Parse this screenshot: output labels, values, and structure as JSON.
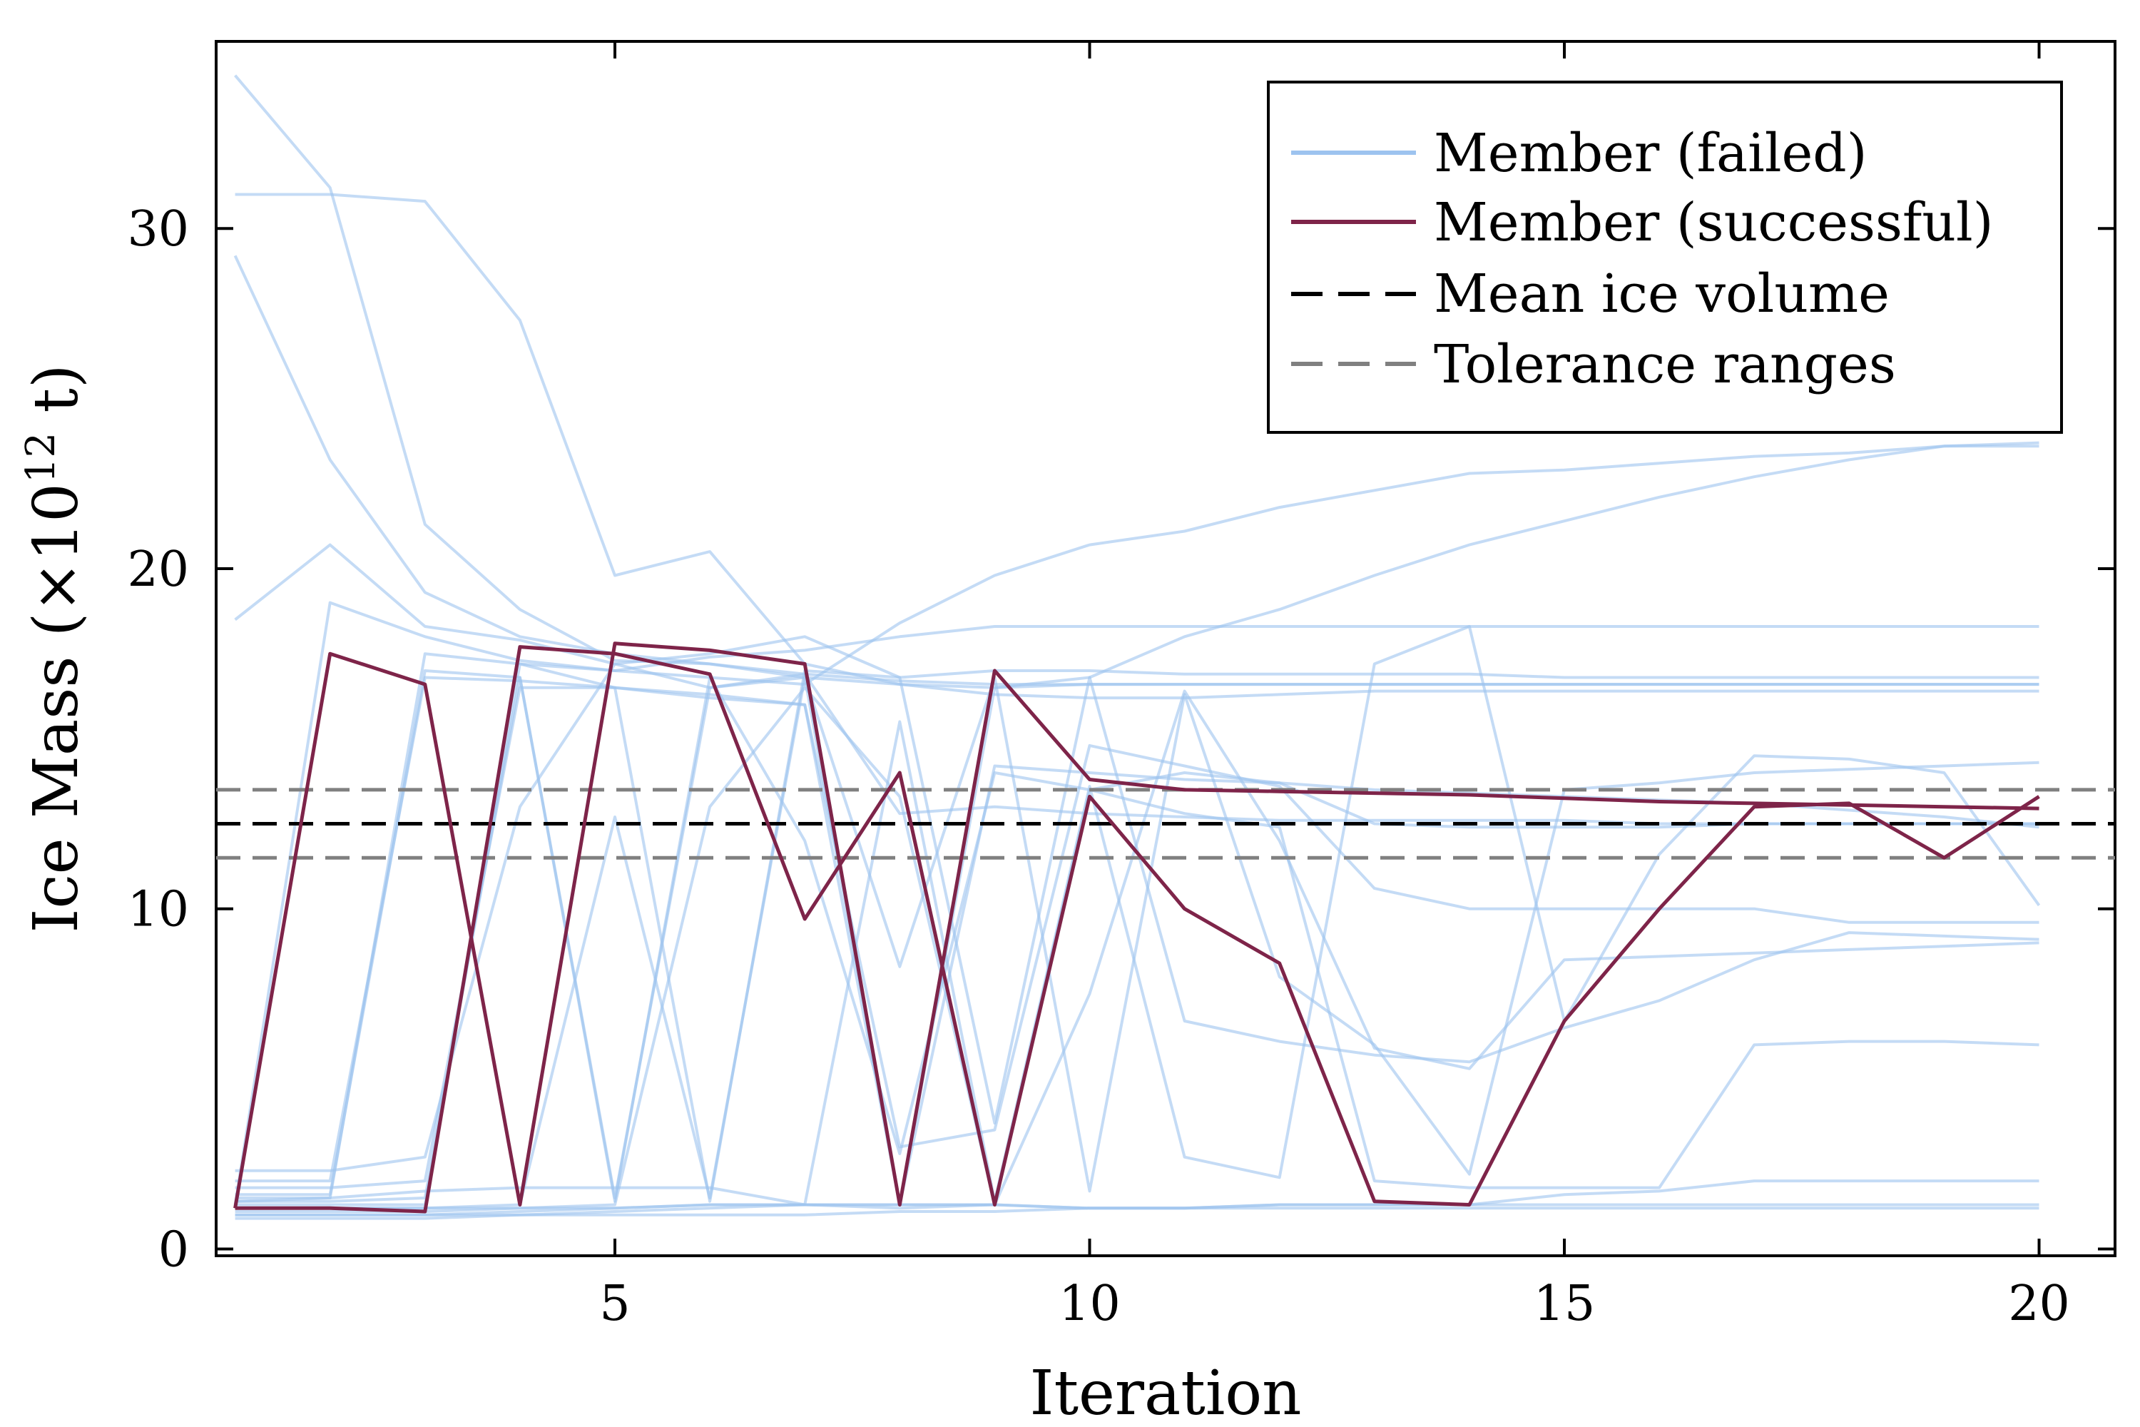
{
  "chart_data": {
    "type": "line",
    "xlabel": "Iteration",
    "ylabel": "Ice Mass (×10",
    "ylabel_exponent": "12",
    "ylabel_unit": " t)",
    "xlim": [
      0.8,
      20.8
    ],
    "ylim": [
      -0.2,
      35.5
    ],
    "x_ticks": [
      5,
      10,
      15,
      20
    ],
    "y_ticks": [
      0,
      10,
      20,
      30
    ],
    "grid": false,
    "legend_position": "top-right",
    "legend": [
      {
        "label": "Member (failed)",
        "style": "failed"
      },
      {
        "label": "Member (successful)",
        "style": "successful"
      },
      {
        "label": "Mean ice volume",
        "style": "mean"
      },
      {
        "label": "Tolerance ranges",
        "style": "tolerance"
      }
    ],
    "colors": {
      "failed": "#9dc3ef",
      "successful": "#7e2449",
      "mean": "#000000",
      "tolerance": "#808080"
    },
    "x": [
      1,
      2,
      3,
      4,
      5,
      6,
      7,
      8,
      9,
      10,
      11,
      12,
      13,
      14,
      15,
      16,
      17,
      18,
      19,
      20
    ],
    "reference_lines": {
      "mean": 12.5,
      "tolerance": [
        11.5,
        13.5
      ]
    },
    "successful_member": [
      1.2,
      17.5,
      16.6,
      1.3,
      17.8,
      17.6,
      17.2,
      1.3,
      17.0,
      13.8,
      13.5,
      13.45,
      13.4,
      13.35,
      13.25,
      13.15,
      13.1,
      13.05,
      13.0,
      12.95
    ],
    "successful_member_second": [
      1.2,
      1.2,
      1.1,
      17.7,
      17.5,
      16.9,
      9.7,
      14.0,
      1.3,
      13.3,
      10.0,
      8.4,
      1.4,
      1.3,
      6.7,
      10.0,
      13.0,
      13.1,
      11.5,
      13.3
    ],
    "failed_members": [
      [
        34.5,
        31.2,
        21.3,
        18.8,
        17.3,
        17.2,
        16.8,
        16.6,
        16.3,
        16.2,
        16.2,
        16.3,
        16.4,
        16.4,
        16.4,
        16.4,
        16.4,
        16.4,
        16.4,
        16.4
      ],
      [
        31.0,
        31.0,
        30.8,
        27.3,
        19.8,
        20.5,
        17.2,
        16.6,
        16.5,
        16.6,
        16.6,
        16.6,
        16.6,
        16.6,
        16.6,
        16.6,
        16.6,
        16.6,
        16.6,
        16.6
      ],
      [
        29.2,
        23.2,
        19.3,
        18.0,
        17.5,
        17.2,
        16.9,
        16.7,
        16.6,
        16.6,
        16.6,
        16.6,
        16.6,
        16.6,
        16.6,
        16.6,
        16.6,
        16.6,
        16.6,
        16.6
      ],
      [
        18.5,
        20.7,
        18.3,
        17.9,
        17.2,
        17.5,
        18.0,
        16.8,
        17.0,
        17.0,
        16.9,
        16.9,
        16.9,
        16.9,
        16.8,
        16.8,
        16.8,
        16.8,
        16.8,
        16.8
      ],
      [
        1.3,
        19.0,
        18.0,
        17.3,
        17.0,
        16.8,
        16.6,
        18.4,
        19.8,
        20.7,
        21.1,
        21.8,
        22.3,
        22.8,
        22.9,
        23.1,
        23.3,
        23.4,
        23.6,
        23.6
      ],
      [
        1.5,
        1.5,
        17.5,
        17.2,
        17.0,
        17.4,
        17.6,
        18.0,
        18.3,
        18.3,
        18.3,
        18.3,
        18.3,
        18.3,
        18.3,
        18.3,
        18.3,
        18.3,
        18.3,
        18.3
      ],
      [
        2.3,
        2.3,
        2.7,
        13.0,
        17.2,
        16.5,
        16.8,
        1.3,
        14.2,
        14.0,
        13.8,
        13.7,
        13.5,
        13.4,
        13.3,
        13.2,
        13.1,
        12.9,
        12.7,
        12.4
      ],
      [
        2.0,
        2.0,
        16.8,
        16.7,
        16.5,
        16.2,
        16.0,
        1.3,
        16.5,
        16.8,
        18.0,
        18.8,
        19.8,
        20.7,
        21.4,
        22.1,
        22.7,
        23.2,
        23.6,
        23.7
      ],
      [
        1.8,
        1.8,
        2.0,
        16.5,
        16.5,
        16.3,
        16.0,
        3.0,
        3.5,
        14.8,
        14.2,
        13.6,
        10.6,
        10.0,
        10.0,
        10.0,
        10.0,
        9.6,
        9.6,
        9.6
      ],
      [
        1.6,
        1.6,
        17.0,
        16.8,
        1.5,
        16.5,
        16.9,
        12.8,
        13.0,
        12.8,
        12.7,
        12.6,
        12.6,
        12.6,
        12.6,
        12.5,
        12.5,
        12.5,
        12.5,
        12.5
      ],
      [
        1.4,
        1.4,
        1.5,
        16.8,
        1.4,
        16.8,
        12.0,
        2.8,
        14.0,
        13.5,
        14.0,
        13.7,
        12.5,
        12.4,
        12.4,
        12.4,
        12.5,
        12.5,
        12.5,
        12.5
      ],
      [
        1.3,
        1.3,
        1.3,
        17.2,
        16.5,
        1.4,
        17.0,
        16.8,
        3.7,
        16.8,
        6.7,
        6.1,
        5.7,
        5.5,
        6.5,
        7.3,
        8.5,
        9.3,
        9.2,
        9.1
      ],
      [
        1.2,
        1.2,
        1.2,
        1.3,
        12.7,
        1.5,
        16.8,
        8.3,
        16.8,
        1.7,
        16.3,
        8.0,
        6.0,
        2.2,
        13.5,
        13.7,
        14.0,
        14.1,
        14.2,
        14.3
      ],
      [
        1.1,
        1.1,
        1.1,
        1.2,
        1.3,
        13.0,
        16.5,
        13.3,
        1.3,
        7.5,
        16.4,
        12.0,
        5.9,
        5.3,
        8.5,
        8.6,
        8.7,
        8.8,
        8.9,
        9.0
      ],
      [
        1.0,
        1.0,
        1.0,
        1.1,
        1.2,
        1.3,
        1.3,
        15.5,
        1.4,
        13.6,
        2.7,
        2.1,
        17.2,
        18.3,
        6.7,
        11.6,
        14.5,
        14.4,
        14.0,
        10.1
      ],
      [
        0.9,
        0.9,
        0.9,
        1.0,
        1.1,
        1.2,
        1.3,
        1.3,
        1.3,
        13.5,
        12.8,
        12.4,
        2.0,
        1.8,
        1.8,
        1.8,
        6.0,
        6.1,
        6.1,
        6.0
      ],
      [
        1.2,
        1.2,
        1.2,
        1.2,
        1.2,
        1.3,
        1.3,
        1.3,
        1.3,
        1.2,
        1.2,
        1.2,
        1.2,
        1.2,
        1.2,
        1.2,
        1.2,
        1.2,
        1.2,
        1.2
      ],
      [
        1.4,
        1.5,
        1.7,
        1.8,
        1.8,
        1.8,
        1.3,
        1.2,
        1.3,
        1.2,
        1.2,
        1.3,
        1.3,
        1.3,
        1.6,
        1.7,
        2.0,
        2.0,
        2.0,
        2.0
      ],
      [
        1.0,
        1.0,
        1.0,
        1.0,
        1.0,
        1.0,
        1.0,
        1.1,
        1.1,
        1.2,
        1.2,
        1.3,
        1.3,
        1.3,
        1.3,
        1.3,
        1.3,
        1.3,
        1.3,
        1.3
      ]
    ]
  }
}
